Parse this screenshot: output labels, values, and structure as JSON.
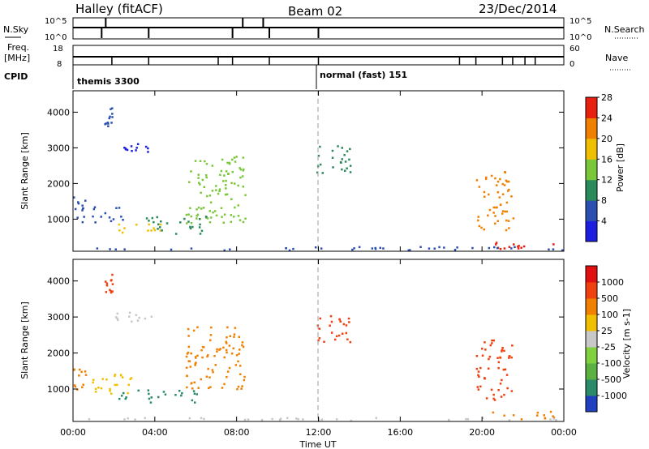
{
  "header": {
    "left_title": "Halley (fitACF)",
    "center_title": "Beam 02",
    "right_title": "23/Dec/2014"
  },
  "top_panels": {
    "nsky_label": "N.Sky",
    "nsearch_label": "N.Search",
    "nsky_ticks": [
      "10^5",
      "10^0"
    ],
    "nsearch_ticks": [
      "10^5",
      "10^0"
    ],
    "freq_label": "Freq.",
    "freq_unit": "[MHz]",
    "freq_ticks": [
      "18",
      "8"
    ],
    "nave_label": "Nave",
    "nave_ticks": [
      "60",
      "0"
    ],
    "cpid_label": "CPID",
    "cpid_entries": [
      "themis 3300",
      "normal (fast) 151"
    ]
  },
  "chart_data": [
    {
      "type": "heatmap",
      "panel": "power",
      "xlabel": "",
      "ylabel": "Slant Range [km]",
      "yticks": [
        1000,
        2000,
        3000,
        4000
      ],
      "colorbar_label": "Power [dB]",
      "colorbar_ticks": [
        4,
        8,
        12,
        16,
        20,
        24,
        28
      ],
      "colorbar_colors": [
        "#1e1ee0",
        "#2a4fb0",
        "#2a8a5a",
        "#7ac83a",
        "#f0c000",
        "#f08000",
        "#e82010"
      ],
      "regions": [
        {
          "t0": 0.0,
          "t1": 0.6,
          "r0": 900,
          "r1": 1700,
          "level": 1
        },
        {
          "t0": 1.5,
          "t1": 1.9,
          "r0": 3500,
          "r1": 4200,
          "level": 1
        },
        {
          "t0": 1.8,
          "t1": 3.8,
          "r0": 2900,
          "r1": 3150,
          "level": 0
        },
        {
          "t0": 0.8,
          "t1": 2.4,
          "r0": 900,
          "r1": 1400,
          "level": 1
        },
        {
          "t0": 2.2,
          "t1": 4.5,
          "r0": 650,
          "r1": 900,
          "level": 4
        },
        {
          "t0": 3.5,
          "t1": 6.5,
          "r0": 600,
          "r1": 1100,
          "level": 2
        },
        {
          "t0": 5.5,
          "t1": 8.4,
          "r0": 900,
          "r1": 2800,
          "level": 3
        },
        {
          "t0": 11.8,
          "t1": 13.6,
          "r0": 2300,
          "r1": 3100,
          "level": 2
        },
        {
          "t0": 19.7,
          "t1": 21.5,
          "r0": 700,
          "r1": 2400,
          "level": 5
        },
        {
          "t0": 20.3,
          "t1": 23.9,
          "r0": 180,
          "r1": 400,
          "level": 6
        },
        {
          "t0": 0.0,
          "t1": 24.0,
          "r0": 150,
          "r1": 250,
          "level": 1
        }
      ]
    },
    {
      "type": "heatmap",
      "panel": "velocity",
      "xlabel": "Time UT",
      "ylabel": "Slant Range [km]",
      "xticks": [
        "00:00",
        "04:00",
        "08:00",
        "12:00",
        "16:00",
        "20:00",
        "00:00"
      ],
      "yticks": [
        1000,
        2000,
        3000,
        4000
      ],
      "colorbar_label": "Velocity [m s-1]",
      "colorbar_ticks": [
        "1000",
        "500",
        "100",
        "25",
        "-25",
        "-100",
        "-500",
        "-1000"
      ],
      "colorbar_colors": [
        "#2040c0",
        "#2a8a6a",
        "#5ab040",
        "#80d040",
        "#c8c8c8",
        "#f0c000",
        "#f08000",
        "#f04010",
        "#e01010"
      ],
      "regions": [
        {
          "t0": 0.0,
          "t1": 0.6,
          "r0": 900,
          "r1": 1700,
          "level": 6
        },
        {
          "t0": 1.5,
          "t1": 1.9,
          "r0": 3700,
          "r1": 4200,
          "level": 7
        },
        {
          "t0": 1.8,
          "t1": 3.8,
          "r0": 2900,
          "r1": 3150,
          "level": 4
        },
        {
          "t0": 0.8,
          "t1": 3.0,
          "r0": 900,
          "r1": 1500,
          "level": 5
        },
        {
          "t0": 2.2,
          "t1": 6.2,
          "r0": 650,
          "r1": 1000,
          "level": 1
        },
        {
          "t0": 5.5,
          "t1": 8.4,
          "r0": 1000,
          "r1": 2800,
          "level": 6
        },
        {
          "t0": 11.8,
          "t1": 13.6,
          "r0": 2300,
          "r1": 3100,
          "level": 7
        },
        {
          "t0": 19.7,
          "t1": 21.5,
          "r0": 700,
          "r1": 2400,
          "level": 7
        },
        {
          "t0": 20.3,
          "t1": 23.5,
          "r0": 180,
          "r1": 400,
          "level": 6
        },
        {
          "t0": 0.0,
          "t1": 24.0,
          "r0": 150,
          "r1": 230,
          "level": 4
        }
      ]
    }
  ]
}
